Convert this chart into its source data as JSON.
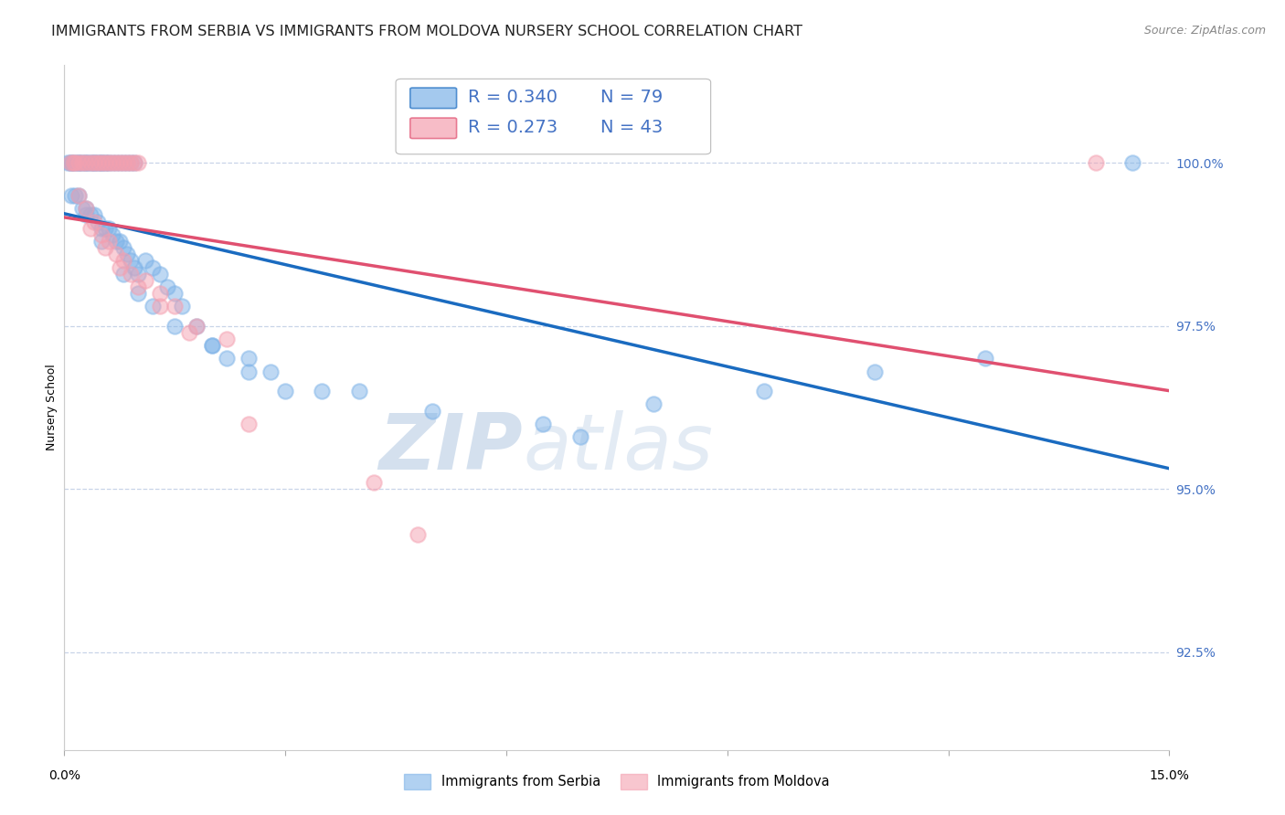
{
  "title": "IMMIGRANTS FROM SERBIA VS IMMIGRANTS FROM MOLDOVA NURSERY SCHOOL CORRELATION CHART",
  "source": "Source: ZipAtlas.com",
  "ylabel": "Nursery School",
  "yticks": [
    92.5,
    95.0,
    97.5,
    100.0
  ],
  "ytick_labels": [
    "92.5%",
    "95.0%",
    "97.5%",
    "100.0%"
  ],
  "xlim": [
    0.0,
    15.0
  ],
  "ylim": [
    91.0,
    101.5
  ],
  "serbia_R": 0.34,
  "serbia_N": 79,
  "moldova_R": 0.273,
  "moldova_N": 43,
  "serbia_color": "#7EB3E8",
  "moldova_color": "#F4A0B0",
  "serbia_line_color": "#1A6BC0",
  "moldova_line_color": "#E05070",
  "serbia_x": [
    0.05,
    0.08,
    0.1,
    0.12,
    0.15,
    0.18,
    0.2,
    0.22,
    0.25,
    0.28,
    0.3,
    0.32,
    0.35,
    0.38,
    0.4,
    0.42,
    0.45,
    0.48,
    0.5,
    0.52,
    0.55,
    0.58,
    0.6,
    0.65,
    0.7,
    0.75,
    0.8,
    0.85,
    0.9,
    0.95,
    0.1,
    0.15,
    0.2,
    0.25,
    0.3,
    0.35,
    0.4,
    0.45,
    0.5,
    0.55,
    0.6,
    0.65,
    0.7,
    0.75,
    0.8,
    0.85,
    0.9,
    0.95,
    1.0,
    1.1,
    1.2,
    1.3,
    1.4,
    1.5,
    1.6,
    1.8,
    2.0,
    2.2,
    2.5,
    2.8,
    0.3,
    0.5,
    0.8,
    1.0,
    1.2,
    1.5,
    2.0,
    2.5,
    3.0,
    3.5,
    4.0,
    5.0,
    6.5,
    8.0,
    9.5,
    11.0,
    12.5,
    14.5,
    7.0
  ],
  "serbia_y": [
    100.0,
    100.0,
    100.0,
    100.0,
    100.0,
    100.0,
    100.0,
    100.0,
    100.0,
    100.0,
    100.0,
    100.0,
    100.0,
    100.0,
    100.0,
    100.0,
    100.0,
    100.0,
    100.0,
    100.0,
    100.0,
    100.0,
    100.0,
    100.0,
    100.0,
    100.0,
    100.0,
    100.0,
    100.0,
    100.0,
    99.5,
    99.5,
    99.5,
    99.3,
    99.3,
    99.2,
    99.2,
    99.1,
    99.0,
    99.0,
    99.0,
    98.9,
    98.8,
    98.8,
    98.7,
    98.6,
    98.5,
    98.4,
    98.3,
    98.5,
    98.4,
    98.3,
    98.1,
    98.0,
    97.8,
    97.5,
    97.2,
    97.0,
    97.0,
    96.8,
    99.2,
    98.8,
    98.3,
    98.0,
    97.8,
    97.5,
    97.2,
    96.8,
    96.5,
    96.5,
    96.5,
    96.2,
    96.0,
    96.3,
    96.5,
    96.8,
    97.0,
    100.0,
    95.8
  ],
  "moldova_x": [
    0.08,
    0.12,
    0.15,
    0.2,
    0.25,
    0.3,
    0.35,
    0.4,
    0.45,
    0.5,
    0.55,
    0.6,
    0.65,
    0.7,
    0.75,
    0.8,
    0.85,
    0.9,
    0.95,
    1.0,
    0.2,
    0.3,
    0.4,
    0.5,
    0.6,
    0.7,
    0.8,
    0.9,
    1.1,
    1.3,
    1.5,
    1.8,
    2.2,
    0.35,
    0.55,
    0.75,
    1.0,
    1.3,
    1.7,
    2.5,
    4.2,
    4.8,
    14.0
  ],
  "moldova_y": [
    100.0,
    100.0,
    100.0,
    100.0,
    100.0,
    100.0,
    100.0,
    100.0,
    100.0,
    100.0,
    100.0,
    100.0,
    100.0,
    100.0,
    100.0,
    100.0,
    100.0,
    100.0,
    100.0,
    100.0,
    99.5,
    99.3,
    99.1,
    98.9,
    98.8,
    98.6,
    98.5,
    98.3,
    98.2,
    98.0,
    97.8,
    97.5,
    97.3,
    99.0,
    98.7,
    98.4,
    98.1,
    97.8,
    97.4,
    96.0,
    95.1,
    94.3,
    100.0
  ],
  "watermark_zip": "ZIP",
  "watermark_atlas": "atlas",
  "background_color": "#ffffff",
  "grid_color": "#c8d4e8",
  "title_fontsize": 11.5,
  "axis_label_fontsize": 9,
  "tick_label_fontsize": 10,
  "legend_fontsize": 14,
  "source_fontsize": 9
}
